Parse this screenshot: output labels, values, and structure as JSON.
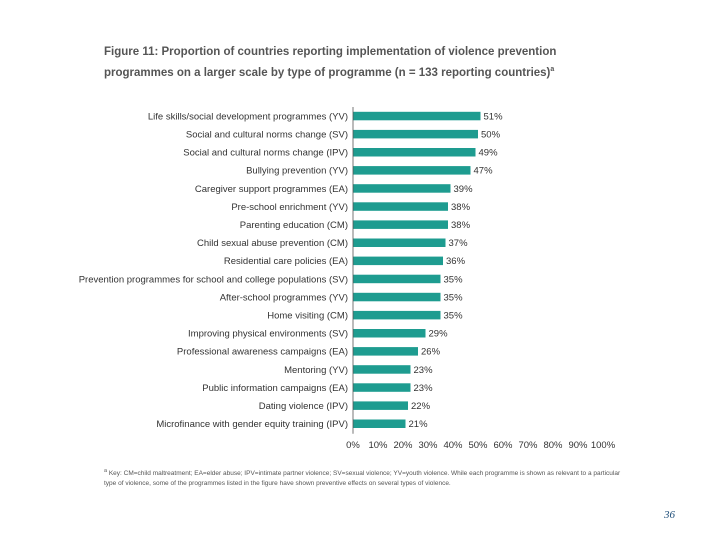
{
  "figure": {
    "title": "Figure 11: Proportion of countries reporting implementation of violence prevention programmes on a larger scale by type of programme (n = 133 reporting countries)",
    "title_marker": "a"
  },
  "chart_data": {
    "type": "bar",
    "orientation": "horizontal",
    "categories": [
      "Life skills/social development programmes (YV)",
      "Social and cultural norms change (SV)",
      "Social and cultural norms change (IPV)",
      "Bullying prevention (YV)",
      "Caregiver support programmes (EA)",
      "Pre-school enrichment (YV)",
      "Parenting education (CM)",
      "Child sexual abuse prevention (CM)",
      "Residential care policies (EA)",
      "Prevention programmes for school and college populations (SV)",
      "After-school programmes (YV)",
      "Home visiting (CM)",
      "Improving physical environments (SV)",
      "Professional awareness campaigns (EA)",
      "Mentoring (YV)",
      "Public information campaigns (EA)",
      "Dating violence (IPV)",
      "Microfinance with gender equity training (IPV)"
    ],
    "values": [
      51,
      50,
      49,
      47,
      39,
      38,
      38,
      37,
      36,
      35,
      35,
      35,
      29,
      26,
      23,
      23,
      22,
      21
    ],
    "value_labels": [
      "51%",
      "50%",
      "49%",
      "47%",
      "39%",
      "38%",
      "38%",
      "37%",
      "36%",
      "35%",
      "35%",
      "35%",
      "29%",
      "26%",
      "23%",
      "23%",
      "22%",
      "21%"
    ],
    "xlim": [
      0,
      100
    ],
    "xticks": [
      "0%",
      "10%",
      "20%",
      "30%",
      "40%",
      "50%",
      "60%",
      "70%",
      "80%",
      "90%",
      "100%"
    ],
    "xlabel": "",
    "ylabel": "",
    "bar_color": "#1e9c90",
    "grid": false
  },
  "footnote": {
    "marker": "a",
    "text": "Key: CM=child maltreatment; EA=elder abuse; IPV=intimate partner violence; SV=sexual violence; YV=youth violence. While each programme is shown as relevant to a particular type of violence, some of the programmes listed in the figure have shown preventive effects on several types of violence."
  },
  "page_number": "36"
}
